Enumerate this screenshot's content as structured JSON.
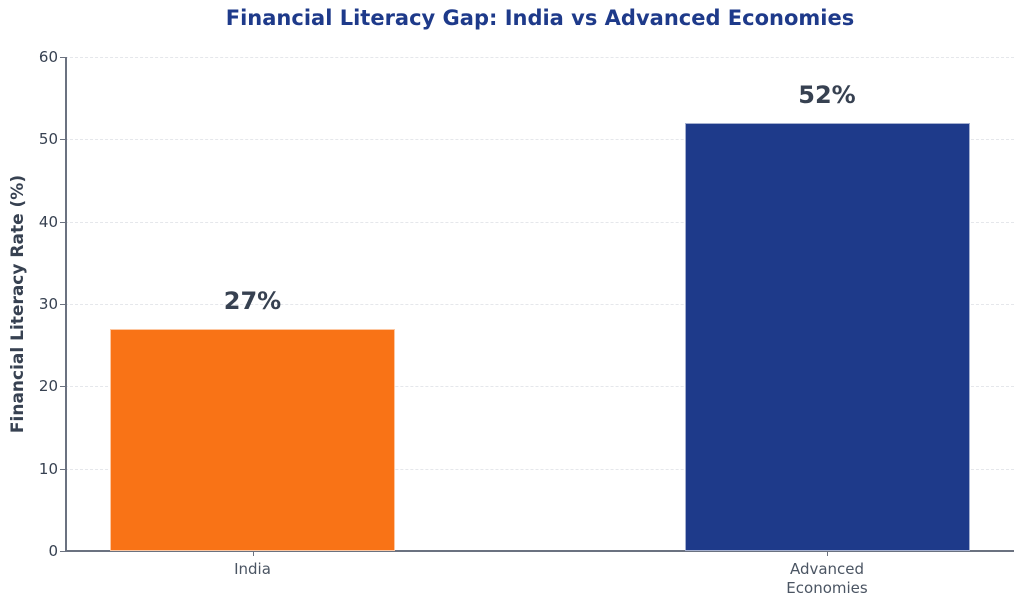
{
  "chart_data": {
    "type": "bar",
    "title": "Financial Literacy Gap: India vs Advanced Economies",
    "xlabel": "",
    "ylabel": "Financial Literacy Rate (%)",
    "categories": [
      "India",
      "Advanced Economies"
    ],
    "category_labels_display": [
      "India",
      "Advanced\nEconomies"
    ],
    "values": [
      27,
      52
    ],
    "value_labels": [
      "27%",
      "52%"
    ],
    "colors": [
      "#F97316",
      "#1E3A8A"
    ],
    "ylim": [
      0,
      60
    ],
    "yticks": [
      0,
      10,
      20,
      30,
      40,
      50,
      60
    ],
    "grid": true,
    "legend": null
  }
}
